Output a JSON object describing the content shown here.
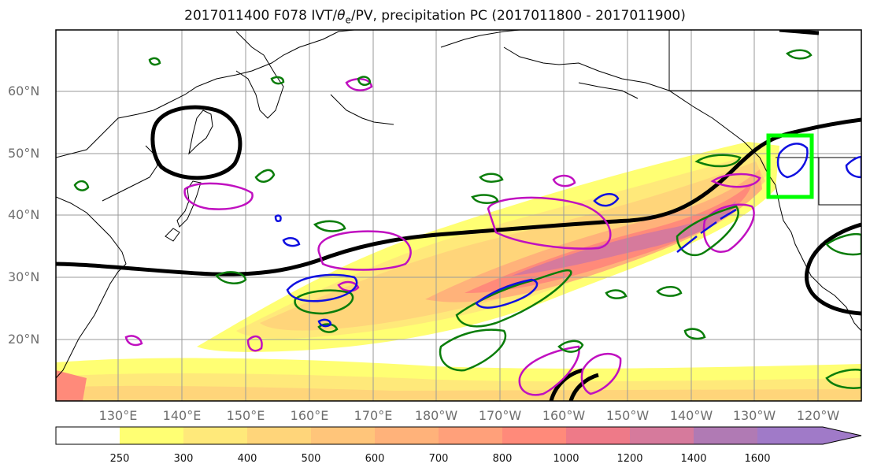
{
  "title_prefix": "2017011400 F078 IVT/",
  "title_theta": "θ",
  "title_sub": "e",
  "title_suffix": "/PV, precipitation PC (2017011800 - 2017011900)",
  "lat_labels": [
    "60°N",
    "50°N",
    "40°N",
    "30°N",
    "20°N"
  ],
  "lon_labels": [
    "130°E",
    "140°E",
    "150°E",
    "160°E",
    "170°E",
    "180°W",
    "170°W",
    "160°W",
    "150°W",
    "140°W",
    "130°W",
    "120°W"
  ],
  "colorbar": {
    "ticks": [
      "250",
      "300",
      "400",
      "500",
      "600",
      "700",
      "800",
      "1000",
      "1200",
      "1400",
      "1600"
    ],
    "colors": [
      "#ffffff",
      "#ffff73",
      "#ffe97a",
      "#ffd57a",
      "#ffc57a",
      "#ffb27a",
      "#ffa07a",
      "#ff8a7a",
      "#ee7a88",
      "#d67a9c",
      "#b07ab4",
      "#a07ac8"
    ]
  },
  "colors": {
    "jet": "#000000",
    "precip_green": "#0a7d0a",
    "pv_magenta": "#c010c0",
    "theta_blue": "#1010e0",
    "highlight_box": "#00ff00",
    "coast": "#000000"
  }
}
